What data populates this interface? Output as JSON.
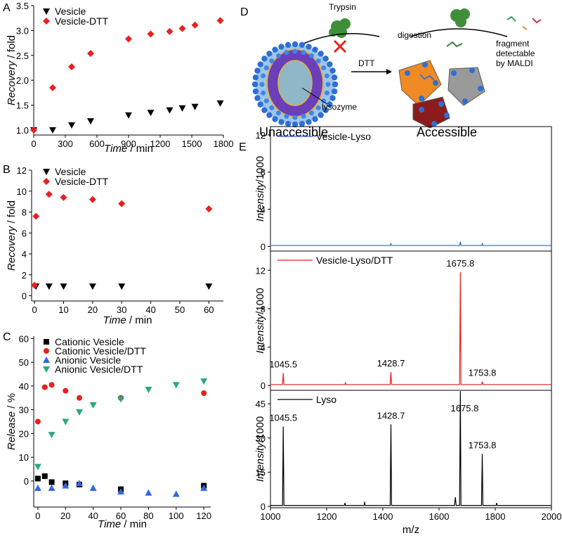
{
  "chart_data": [
    {
      "type": "scatter",
      "panel": "A",
      "xlabel": [
        "Time",
        " / min"
      ],
      "ylabel": [
        "Recovery",
        " / fold"
      ],
      "xlim": [
        0,
        1800
      ],
      "ylim": [
        0.9,
        3.5
      ],
      "xticks": [
        0,
        300,
        600,
        900,
        1200,
        1500,
        1800
      ],
      "yticks": [
        {
          "value": 1,
          "label": "1.0"
        },
        1.5,
        {
          "value": 2,
          "label": "2.0"
        },
        2.5,
        {
          "value": 3,
          "label": "3.0"
        },
        3.5
      ],
      "series": [
        {
          "name": "Vesicle",
          "color": "#000000",
          "marker": "triangle-down",
          "x": [
            0,
            180,
            360,
            540,
            900,
            1110,
            1290,
            1410,
            1530,
            1770
          ],
          "values": [
            1.0,
            1.0,
            1.1,
            1.18,
            1.3,
            1.35,
            1.4,
            1.44,
            1.47,
            1.54
          ]
        },
        {
          "name": "Vesicle-DTT",
          "color": "#e8201f",
          "marker": "diamond",
          "x": [
            0,
            180,
            360,
            540,
            900,
            1110,
            1290,
            1410,
            1530,
            1770
          ],
          "values": [
            1.0,
            1.85,
            2.27,
            2.54,
            2.83,
            2.93,
            2.98,
            3.04,
            3.11,
            3.2
          ]
        }
      ]
    },
    {
      "type": "scatter",
      "panel": "B",
      "xlabel": [
        "Time",
        " / min"
      ],
      "ylabel": [
        "Recovery",
        " / fold"
      ],
      "xlim": [
        -1,
        65
      ],
      "ylim": [
        -0.5,
        12
      ],
      "xticks": [
        0,
        10,
        20,
        30,
        40,
        50,
        60
      ],
      "yticks": [
        0,
        2,
        4,
        6,
        8,
        10,
        12
      ],
      "series": [
        {
          "name": "Vesicle",
          "color": "#000000",
          "marker": "triangle-down",
          "x": [
            0.5,
            5,
            10,
            20,
            30,
            60
          ],
          "values": [
            0.9,
            0.9,
            0.9,
            0.9,
            0.9,
            0.9
          ]
        },
        {
          "name": "Vesicle-DTT",
          "color": "#e8201f",
          "marker": "diamond",
          "x": [
            0,
            0.5,
            5,
            10,
            20,
            30,
            60
          ],
          "values": [
            1.0,
            7.6,
            9.7,
            9.4,
            9.2,
            8.8,
            8.3
          ]
        }
      ]
    },
    {
      "type": "scatter",
      "panel": "C",
      "xlabel": [
        "Time",
        " / min"
      ],
      "ylabel": [
        "Release",
        " / %"
      ],
      "xlim": [
        -3,
        125
      ],
      "ylim": [
        -11,
        61
      ],
      "xticks": [
        0,
        20,
        40,
        60,
        80,
        100,
        120
      ],
      "yticks": [
        0,
        10,
        20,
        30,
        40,
        50,
        60
      ],
      "series": [
        {
          "name": "Cationic Vesicle",
          "color": "#000000",
          "marker": "square",
          "x": [
            0,
            5,
            10,
            20,
            30,
            60,
            120
          ],
          "values": [
            1,
            2,
            -0.5,
            -1,
            -1.5,
            -3.5,
            -2
          ]
        },
        {
          "name": "Cationic Vesicle/DTT",
          "color": "#e8201f",
          "marker": "circle",
          "x": [
            0,
            5,
            10,
            20,
            30,
            60,
            120
          ],
          "values": [
            25,
            39.5,
            40.5,
            38,
            35,
            35,
            37
          ]
        },
        {
          "name": "Anionic Vesicle",
          "color": "#3366e6",
          "marker": "triangle-up",
          "x": [
            0,
            10,
            20,
            30,
            40,
            60,
            80,
            100,
            120
          ],
          "values": [
            -3,
            -3,
            -2,
            -1,
            -3,
            -4.5,
            -5,
            -5.5,
            -3
          ]
        },
        {
          "name": "Anionic Vesicle/DTT",
          "color": "#2aa87a",
          "marker": "triangle-down",
          "x": [
            0,
            10,
            20,
            30,
            40,
            60,
            80,
            100,
            120
          ],
          "values": [
            6,
            19.5,
            25,
            29,
            32,
            34.5,
            38.5,
            40.5,
            42
          ]
        }
      ]
    },
    {
      "type": "line",
      "panel": "E",
      "ylabel": [
        "Intensity",
        "/1000"
      ],
      "xlim": [
        1000,
        2000
      ],
      "ylim": [
        -0.5,
        12.9
      ],
      "yticks": [
        0,
        4,
        8,
        12
      ],
      "series": [
        {
          "name": "Vesicle-Lyso",
          "color": "#2f5fe0",
          "x": [
            1000,
            1100,
            1200,
            1300,
            1426,
            1428.7,
            1431,
            1500,
            1600,
            1673,
            1675.8,
            1678,
            1751,
            1753.8,
            1756,
            1850,
            2000
          ],
          "values": [
            0.1,
            0.1,
            0.1,
            0.1,
            0.1,
            0.3,
            0.1,
            0.1,
            0.1,
            0.1,
            0.5,
            0.1,
            0.1,
            0.3,
            0.1,
            0.1,
            0.1
          ]
        }
      ]
    },
    {
      "type": "line",
      "ylabel": [
        "Intensity",
        "/1000"
      ],
      "xlim": [
        1000,
        2000
      ],
      "ylim": [
        -0.5,
        14
      ],
      "yticks": [
        0,
        4,
        8,
        12
      ],
      "peak_labels": [
        1045.5,
        1428.7,
        1675.8,
        1753.8
      ],
      "series": [
        {
          "name": "Vesicle-Lyso/DTT",
          "color": "#e8201f",
          "x": [
            1000,
            1043,
            1045.5,
            1048,
            1200,
            1265,
            1267,
            1269,
            1426,
            1428.7,
            1431,
            1600,
            1673,
            1675.8,
            1678,
            1751,
            1753.8,
            1756,
            2000
          ],
          "values": [
            0.1,
            0.1,
            1.3,
            0.1,
            0.1,
            0.1,
            0.3,
            0.1,
            0.1,
            1.4,
            0.1,
            0.1,
            0.1,
            11.8,
            0.1,
            0.1,
            0.4,
            0.1,
            0.1
          ]
        }
      ]
    },
    {
      "type": "line",
      "xlabel": "m/z",
      "ylabel": [
        "Intensity",
        "/1000"
      ],
      "xlim": [
        1000,
        2000
      ],
      "ylim": [
        -0.6,
        50.9
      ],
      "xticks": [
        1000,
        1200,
        1400,
        1600,
        1800,
        2000
      ],
      "yticks": [
        0,
        15,
        30,
        45
      ],
      "peak_labels": [
        1045.5,
        1428.7,
        1675.8,
        1753.8
      ],
      "series": [
        {
          "name": "Lyso",
          "color": "#000000",
          "x": [
            1000,
            1043,
            1045.5,
            1048,
            1263,
            1265,
            1267,
            1333,
            1335,
            1337,
            1426,
            1428.7,
            1431,
            1655,
            1658,
            1661,
            1673,
            1675.8,
            1678,
            1751,
            1753.8,
            1756,
            1803,
            1805,
            1807,
            2000
          ],
          "values": [
            0.4,
            0.4,
            35,
            0.4,
            0.4,
            1.5,
            0.4,
            0.4,
            2,
            0.4,
            0.4,
            36,
            0.4,
            0.4,
            4,
            0.4,
            0.4,
            50.5,
            0.4,
            0.4,
            23,
            0.4,
            0.4,
            1.5,
            0.4,
            0.4
          ]
        }
      ]
    }
  ],
  "diagram": {
    "panel": "D",
    "trypsin": "Trypsin",
    "digestion": "digestion",
    "dtt": "DTT",
    "fragment": [
      "fragment",
      "detectable",
      "by MALDI"
    ],
    "lysozyme": "lysozyme",
    "left_caption": "Unaccesible",
    "right_caption": "Accessible"
  }
}
